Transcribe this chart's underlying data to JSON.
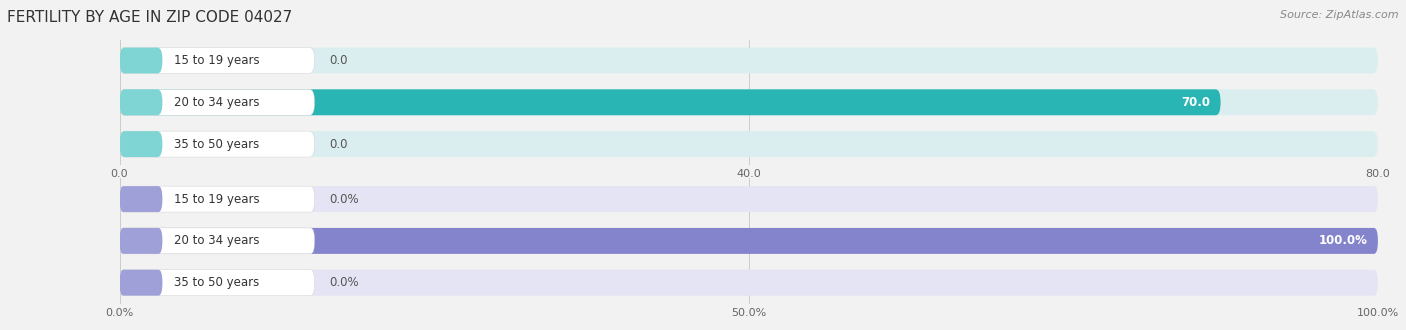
{
  "title": "FERTILITY BY AGE IN ZIP CODE 04027",
  "source": "Source: ZipAtlas.com",
  "categories": [
    "15 to 19 years",
    "20 to 34 years",
    "35 to 50 years"
  ],
  "chart1": {
    "values": [
      0.0,
      70.0,
      0.0
    ],
    "max_val": 80.0,
    "tick_vals": [
      0.0,
      40.0,
      80.0
    ],
    "tick_labels": [
      "0.0",
      "40.0",
      "80.0"
    ],
    "bar_color": "#2ab5b5",
    "bar_bg_color": "#daeef0",
    "label_bg_color": "#ffffff",
    "label_accent_color": "#7fd4d4"
  },
  "chart2": {
    "values": [
      0.0,
      100.0,
      0.0
    ],
    "max_val": 100.0,
    "tick_vals": [
      0.0,
      50.0,
      100.0
    ],
    "tick_labels": [
      "0.0%",
      "50.0%",
      "100.0%"
    ],
    "bar_color": "#8484cc",
    "bar_bg_color": "#e4e4f4",
    "label_bg_color": "#ffffff",
    "label_accent_color": "#a0a0d8"
  },
  "fig_bg_color": "#f2f2f2",
  "label_font_size": 8.5,
  "value_font_size": 8.5,
  "tick_font_size": 8,
  "title_font_size": 11,
  "source_font_size": 8
}
